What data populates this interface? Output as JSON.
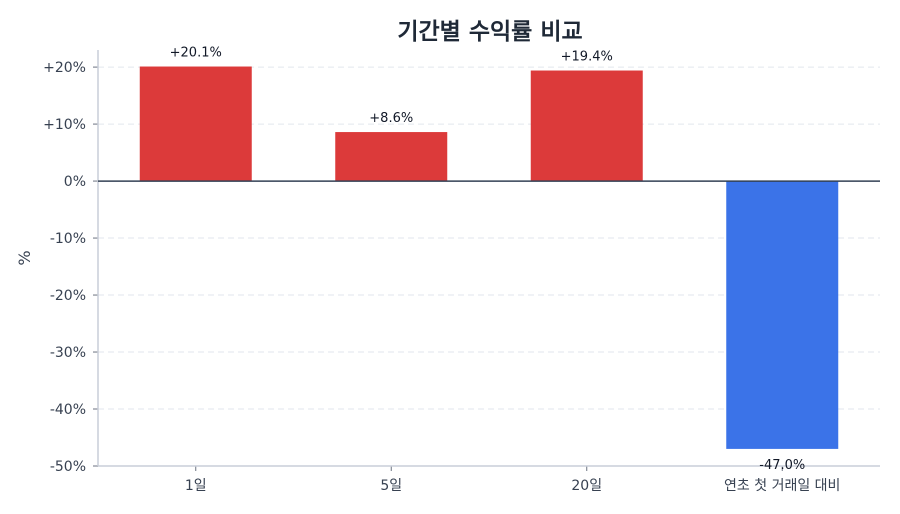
{
  "chart_data": {
    "type": "bar",
    "title": "기간별 수익률 비교",
    "xlabel": "",
    "ylabel": "%",
    "categories": [
      "1일",
      "5일",
      "20일",
      "연초 첫 거래일 대비"
    ],
    "values": [
      20.1,
      8.6,
      19.4,
      -47.0
    ],
    "data_labels": [
      "+20.1%",
      "+8.6%",
      "+19.4%",
      "-47.0%"
    ],
    "ylim": [
      -50,
      23
    ],
    "yticks": [
      20,
      10,
      0,
      -10,
      -20,
      -30,
      -40,
      -50
    ],
    "ytick_labels": [
      "+20%",
      "+10%",
      "0%",
      "-10%",
      "-20%",
      "-30%",
      "-40%",
      "-50%"
    ],
    "grid": true,
    "legend": "none",
    "colors": {
      "positive": "#dc3a3a",
      "negative": "#3b73e8",
      "zero_line": "#334155",
      "grid": "#e2e6ee",
      "axis": "#c9ced8"
    }
  }
}
